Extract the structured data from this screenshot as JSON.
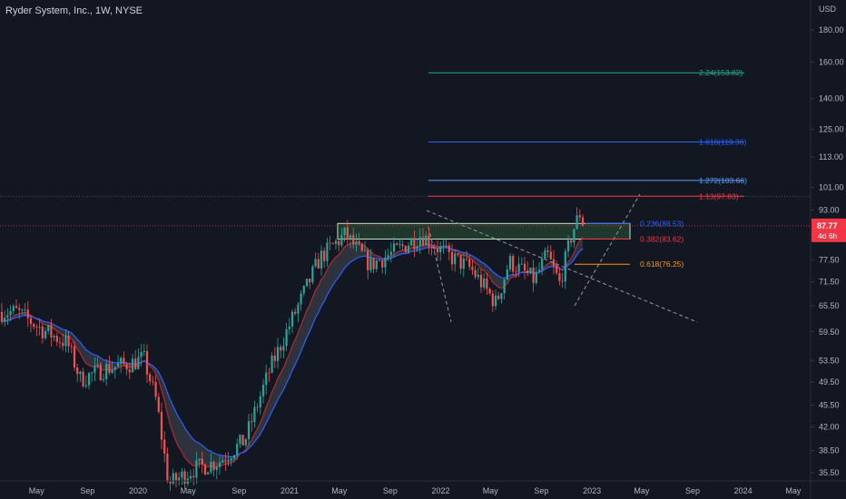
{
  "header": {
    "title": "Ryder System, Inc., 1W, NYSE",
    "currency": "USD"
  },
  "price_tag": {
    "value": "87.77",
    "countdown": "4d 6h",
    "color": "#f23645"
  },
  "chart_data": {
    "type": "candlestick",
    "ylim": [
      34.5,
      200
    ],
    "y_scale": "log",
    "y_ticks": [
      "35.50",
      "38.50",
      "42.00",
      "45.50",
      "49.50",
      "53.50",
      "59.50",
      "65.50",
      "71.50",
      "77.50",
      "85.00",
      "93.00",
      "101.00",
      "113.00",
      "125.00",
      "140.00",
      "160.00",
      "180.00"
    ],
    "x_ticks": [
      "May",
      "Sep",
      "2020",
      "May",
      "Sep",
      "2021",
      "May",
      "Sep",
      "2022",
      "May",
      "Sep",
      "2023",
      "May",
      "Sep",
      "2024",
      "May"
    ],
    "fib_levels": [
      {
        "label": "2.24(153.82)",
        "value": 153.82,
        "color": "#22ab94"
      },
      {
        "label": "1.618(119.36)",
        "value": 119.36,
        "color": "#2962ff"
      },
      {
        "label": "1.272(103.66)",
        "value": 103.66,
        "color": "#5b9cf6"
      },
      {
        "label": "1.13(97.83)",
        "value": 97.83,
        "color": "#f23645"
      },
      {
        "label": "0.236(88.53)",
        "value": 88.53,
        "color": "#2962ff"
      },
      {
        "label": "0.382(83.62)",
        "value": 83.62,
        "color": "#f23645"
      },
      {
        "label": "0.618(76.25)",
        "value": 76.25,
        "color": "#ff9800"
      }
    ],
    "last_price": 87.77,
    "price_path": [
      {
        "date": "2019-03",
        "price": 64
      },
      {
        "date": "2019-05",
        "price": 60
      },
      {
        "date": "2019-07",
        "price": 57
      },
      {
        "date": "2019-08",
        "price": 50
      },
      {
        "date": "2019-10",
        "price": 52
      },
      {
        "date": "2019-12",
        "price": 53
      },
      {
        "date": "2020-01",
        "price": 54
      },
      {
        "date": "2020-02",
        "price": 46
      },
      {
        "date": "2020-03",
        "price": 34
      },
      {
        "date": "2020-05",
        "price": 36
      },
      {
        "date": "2020-07",
        "price": 37
      },
      {
        "date": "2020-09",
        "price": 40
      },
      {
        "date": "2020-11",
        "price": 52
      },
      {
        "date": "2021-01",
        "price": 64
      },
      {
        "date": "2021-03",
        "price": 78
      },
      {
        "date": "2021-05",
        "price": 85
      },
      {
        "date": "2021-07",
        "price": 76
      },
      {
        "date": "2021-09",
        "price": 80
      },
      {
        "date": "2021-11",
        "price": 85
      },
      {
        "date": "2022-01",
        "price": 79
      },
      {
        "date": "2022-03",
        "price": 75
      },
      {
        "date": "2022-05",
        "price": 66
      },
      {
        "date": "2022-06",
        "price": 77
      },
      {
        "date": "2022-08",
        "price": 72
      },
      {
        "date": "2022-09",
        "price": 79
      },
      {
        "date": "2022-10",
        "price": 71
      },
      {
        "date": "2022-11",
        "price": 86
      },
      {
        "date": "2022-12",
        "price": 96
      },
      {
        "date": "2022-12-15",
        "price": 87.77
      }
    ]
  }
}
